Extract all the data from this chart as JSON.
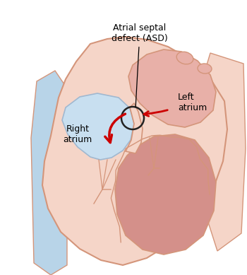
{
  "background_color": "#ffffff",
  "heart_outer_fill": "#f5d5c8",
  "heart_outer_stroke": "#d4957a",
  "right_atrium_fill": "#c8dff0",
  "right_atrium_stroke": "#a0b8d0",
  "left_atrium_fill": "#e8b0a8",
  "left_ventricle_fill": "#d4908a",
  "vena_cava_fill": "#b8d4e8",
  "arrow_color": "#cc0000",
  "circle_color": "#222222",
  "label_asd": "Atrial septal\ndefect (ASD)",
  "label_left_atrium": "Left\natrium",
  "label_right_atrium": "Right\natrium",
  "label_fontsize": 9,
  "line_color": "#222222"
}
